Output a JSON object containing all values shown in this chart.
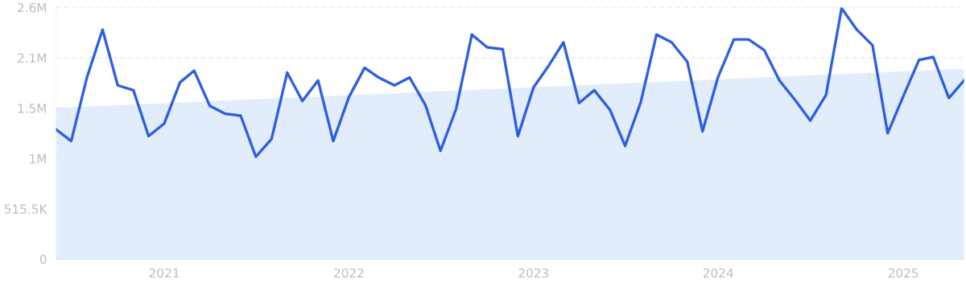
{
  "chart_data": {
    "type": "line",
    "x": [
      "2020-06",
      "2020-07",
      "2020-08",
      "2020-09",
      "2020-10",
      "2020-11",
      "2020-12",
      "2021-01",
      "2021-02",
      "2021-03",
      "2021-04",
      "2021-05",
      "2021-06",
      "2021-07",
      "2021-08",
      "2021-09",
      "2021-10",
      "2021-11",
      "2021-12",
      "2022-01",
      "2022-02",
      "2022-03",
      "2022-04",
      "2022-05",
      "2022-06",
      "2022-07",
      "2022-08",
      "2022-09",
      "2022-10",
      "2022-11",
      "2022-12",
      "2023-01",
      "2023-02",
      "2023-03",
      "2023-04",
      "2023-05",
      "2023-06",
      "2023-07",
      "2023-08",
      "2023-09",
      "2023-10",
      "2023-11",
      "2023-12",
      "2024-01",
      "2024-02",
      "2024-03",
      "2024-04",
      "2024-05",
      "2024-06",
      "2024-07",
      "2024-08",
      "2024-09",
      "2024-10",
      "2024-11",
      "2024-12",
      "2025-01",
      "2025-02",
      "2025-03",
      "2025-04",
      "2025-05"
    ],
    "series": [
      {
        "type": "area",
        "color": "#dbe9fa",
        "x": [
          "2020-06",
          "2025-05"
        ],
        "values": [
          1550000,
          1950000
        ]
      },
      {
        "color": "#2d5fe0",
        "values": [
          1330000,
          1210000,
          1860000,
          2350000,
          1780000,
          1730000,
          1260000,
          1390000,
          1810000,
          1930000,
          1570000,
          1490000,
          1470000,
          1050000,
          1230000,
          1910000,
          1620000,
          1830000,
          1210000,
          1660000,
          1960000,
          1860000,
          1780000,
          1860000,
          1580000,
          1110000,
          1540000,
          2300000,
          2170000,
          2150000,
          1260000,
          1760000,
          1990000,
          2220000,
          1600000,
          1730000,
          1530000,
          1160000,
          1610000,
          2300000,
          2220000,
          2020000,
          1310000,
          1870000,
          2250000,
          2250000,
          2140000,
          1830000,
          1630000,
          1420000,
          1680000,
          2570000,
          2350000,
          2190000,
          1290000,
          1670000,
          2040000,
          2070000,
          1650000,
          1830000
        ]
      }
    ],
    "xlim": [
      "2020-06",
      "2025-05"
    ],
    "xticks": [
      {
        "value": "2021-01",
        "label": "2021"
      },
      {
        "value": "2022-01",
        "label": "2022"
      },
      {
        "value": "2023-01",
        "label": "2023"
      },
      {
        "value": "2024-01",
        "label": "2024"
      },
      {
        "value": "2025-01",
        "label": "2025"
      }
    ],
    "ylim": [
      0,
      2577500
    ],
    "yticks": [
      0,
      {
        "value": 515500,
        "label": "515.5K"
      },
      {
        "value": 1031000,
        "label": "1M"
      },
      {
        "value": 1546500,
        "label": "1.5M"
      },
      {
        "value": 2062000,
        "label": "2.1M"
      },
      {
        "value": 2577500,
        "label": "2.6M"
      }
    ],
    "grid": "y",
    "line_style": "solid",
    "marker": "none",
    "legend": false
  }
}
